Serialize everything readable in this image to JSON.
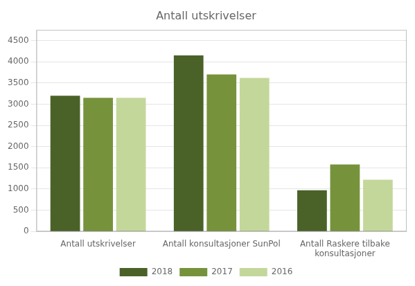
{
  "chart_data": {
    "type": "bar",
    "title": "Antall utskrivelser",
    "categories": [
      "Antall utskrivelser",
      "Antall konsultasjoner SunPol",
      "Antall Raskere tilbake\nkonsultasjoner"
    ],
    "series": [
      {
        "name": "2018",
        "color": "#4a6228",
        "values": [
          3200,
          4150,
          970
        ]
      },
      {
        "name": "2017",
        "color": "#76933c",
        "values": [
          3150,
          3700,
          1580
        ]
      },
      {
        "name": "2016",
        "color": "#c4d79b",
        "values": [
          3150,
          3620,
          1220
        ]
      }
    ],
    "ylim": [
      0,
      4750
    ],
    "yticks": [
      0,
      500,
      1000,
      1500,
      2000,
      2500,
      3000,
      3500,
      4000,
      4500
    ],
    "grid": true,
    "legend": "bottom"
  }
}
